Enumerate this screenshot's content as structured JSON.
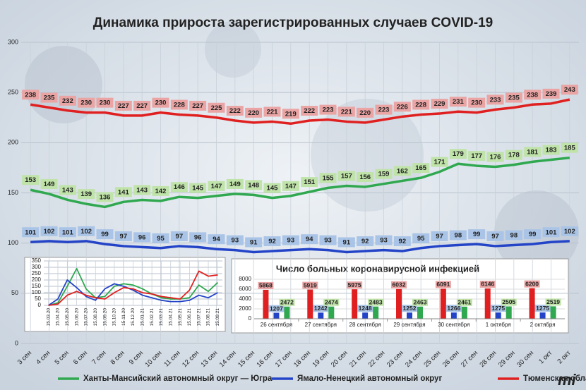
{
  "chart_data": [
    {
      "type": "line",
      "title": "Динамика прироста зарегистрированных случаев COVID-19",
      "categories": [
        "3 сен",
        "4 сен",
        "5 сен",
        "6 сен",
        "7 сен",
        "8 сен",
        "9 сен",
        "10 сен",
        "11 сен",
        "12 сен",
        "13 сен",
        "14 сен",
        "15 сен",
        "16 сен",
        "17 сен",
        "18 сен",
        "19 сен",
        "20 сен",
        "21 сен",
        "22 сен",
        "23 сен",
        "24 сен",
        "25 сен",
        "26 сен",
        "27 сен",
        "28 сен",
        "29 сен",
        "30 сен",
        "1 окт",
        "2 окт"
      ],
      "series": [
        {
          "name": "Ханты-Мансийский автономный округ — Югра",
          "color": "#2fa84f",
          "values": [
            153,
            149,
            143,
            139,
            136,
            141,
            143,
            142,
            146,
            145,
            147,
            149,
            148,
            145,
            147,
            151,
            155,
            157,
            156,
            159,
            162,
            165,
            171,
            179,
            177,
            176,
            178,
            181,
            183,
            185
          ]
        },
        {
          "name": "Ямало-Ненецкий автономный округ",
          "color": "#2444c8",
          "values": [
            101,
            102,
            101,
            102,
            99,
            97,
            96,
            95,
            97,
            96,
            94,
            93,
            91,
            92,
            93,
            94,
            93,
            91,
            92,
            93,
            92,
            95,
            97,
            98,
            99,
            97,
            98,
            99,
            101,
            102
          ]
        },
        {
          "name": "Тюменская область",
          "color": "#e02020",
          "values": [
            238,
            235,
            232,
            230,
            230,
            227,
            227,
            230,
            228,
            227,
            225,
            222,
            220,
            221,
            219,
            222,
            223,
            221,
            220,
            223,
            226,
            228,
            229,
            231,
            230,
            233,
            235,
            238,
            239,
            243
          ]
        }
      ],
      "ylim": [
        0,
        300
      ],
      "yticks": [
        0,
        50,
        100,
        150,
        200,
        250,
        300
      ],
      "grid": true
    },
    {
      "type": "line",
      "categories": [
        "15.03.20",
        "15.04.20",
        "15.05.20",
        "15.06.20",
        "15.07.20",
        "15.08.20",
        "15.09.20",
        "15.10.20",
        "15.11.20",
        "15.12.20",
        "15.01.21",
        "15.02.21",
        "15.03.21",
        "15.04.21",
        "15.05.21",
        "15.06.21",
        "15.07.21",
        "15.08.21",
        "15.09.21"
      ],
      "series": [
        {
          "color": "#2fa84f",
          "values": [
            0,
            20,
            150,
            290,
            130,
            60,
            70,
            150,
            170,
            160,
            130,
            90,
            60,
            50,
            50,
            60,
            160,
            110,
            180
          ]
        },
        {
          "color": "#2444c8",
          "values": [
            0,
            50,
            200,
            140,
            70,
            40,
            130,
            170,
            150,
            120,
            80,
            60,
            40,
            30,
            30,
            40,
            80,
            60,
            100
          ]
        },
        {
          "color": "#e02020",
          "values": [
            0,
            10,
            80,
            110,
            80,
            60,
            50,
            100,
            140,
            130,
            100,
            90,
            70,
            60,
            50,
            120,
            270,
            230,
            240
          ]
        }
      ],
      "ylim": [
        0,
        350
      ],
      "yticks": [
        0,
        50,
        100,
        150,
        200,
        250,
        300,
        350
      ],
      "grid": true
    },
    {
      "type": "bar",
      "title": "Число больных коронавирусной инфекцией",
      "categories": [
        "26 сентября",
        "27 сентября",
        "28 сентября",
        "29 сентября",
        "30 сентября",
        "1 октября",
        "2 октября"
      ],
      "series": [
        {
          "color": "#e02020",
          "values": [
            5868,
            5919,
            5975,
            6032,
            6091,
            6146,
            6200
          ]
        },
        {
          "color": "#2444c8",
          "values": [
            1207,
            1242,
            1248,
            1252,
            1266,
            1275,
            1275
          ]
        },
        {
          "color": "#2fa84f",
          "values": [
            2472,
            2474,
            2483,
            2463,
            2461,
            2505,
            2519
          ]
        }
      ],
      "ylim": [
        0,
        8000
      ],
      "yticks": [
        0,
        2000,
        4000,
        6000,
        8000
      ],
      "grid": true
    }
  ]
}
